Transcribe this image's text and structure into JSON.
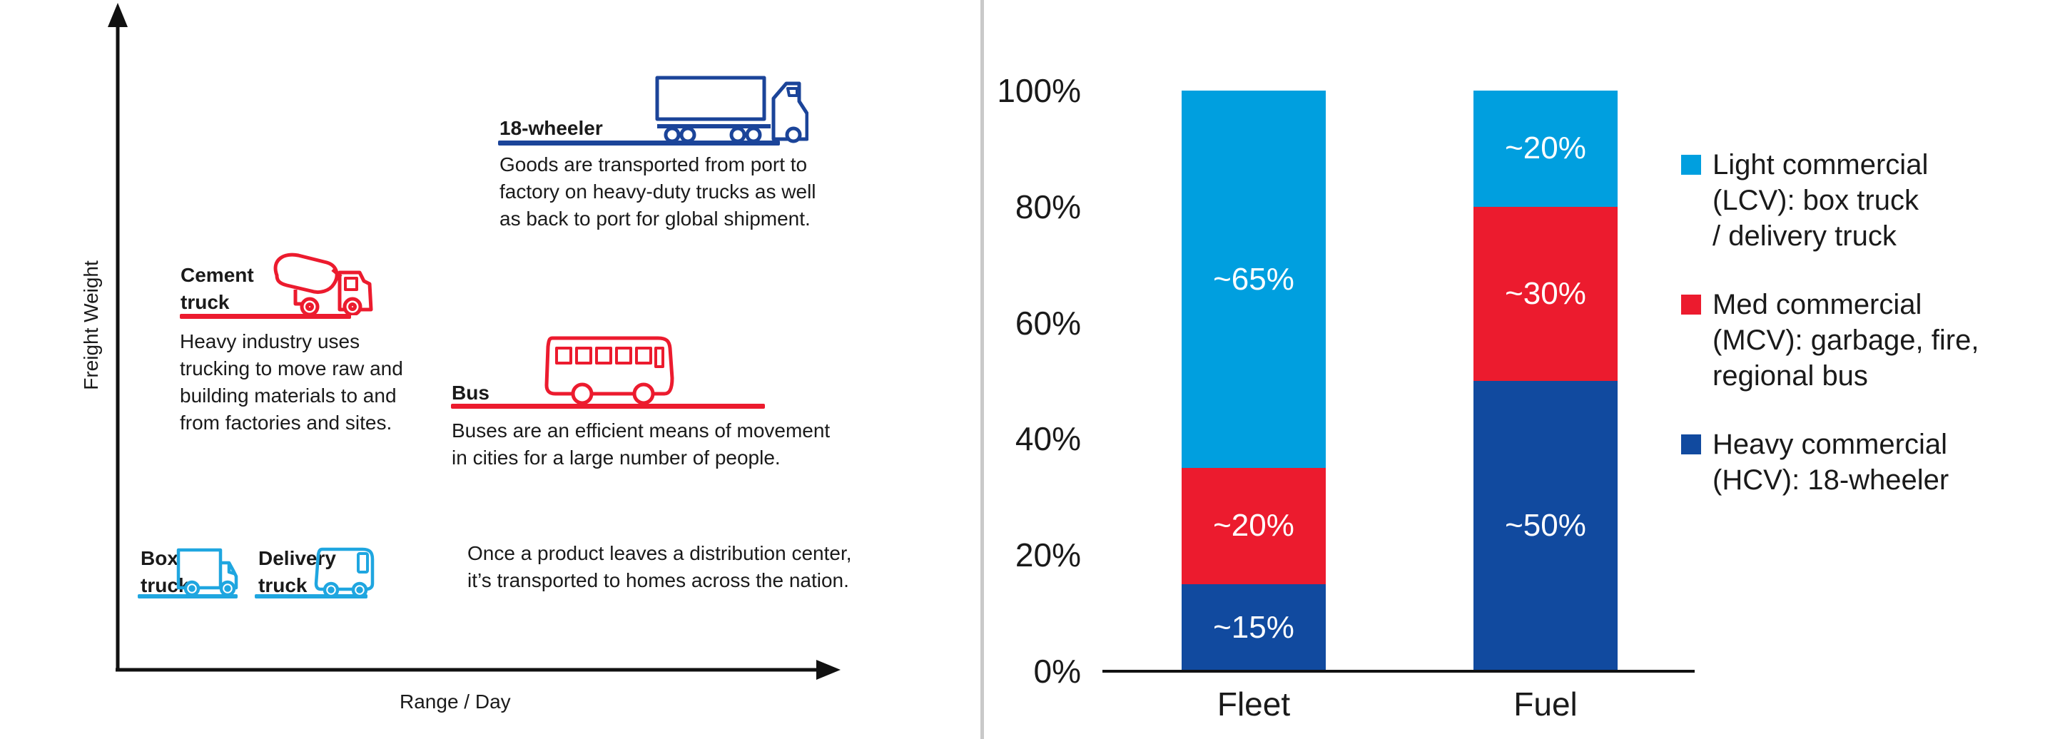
{
  "colors": {
    "lcv": "#009FDF",
    "mcv": "#EC1B2E",
    "hcv": "#114A9F",
    "navy": "#1B4499",
    "cyan": "#1FA6E0",
    "ink": "#1A1A1A",
    "axis": "#111111",
    "divider": "#C9C9C9"
  },
  "diagram": {
    "y_axis_label": "Freight Weight",
    "x_axis_label": "Range / Day",
    "groups": {
      "eighteen_wheeler": {
        "label": "18-wheeler",
        "description": "Goods are transported from port to\nfactory on heavy-duty trucks as well\nas back to port for global shipment."
      },
      "cement_truck": {
        "label": "Cement\ntruck",
        "description": "Heavy industry uses\ntrucking to move raw and\nbuilding materials to and\nfrom factories and sites."
      },
      "bus": {
        "label": "Bus",
        "description": "Buses are an efficient means of movement\nin cities for a large number of people."
      },
      "box_truck": {
        "label": "Box\ntruck"
      },
      "delivery_truck": {
        "label": "Delivery\ntruck"
      },
      "light_trucks_description": "Once a product leaves a distribution center,\nit’s transported to homes across the nation."
    }
  },
  "chart_data": {
    "type": "bar",
    "subtype": "stacked-100-percent",
    "categories": [
      "Fleet",
      "Fuel"
    ],
    "series": [
      {
        "name": "Light commercial (LCV): box truck / delivery truck",
        "color_key": "lcv",
        "values": [
          65,
          20
        ],
        "segment_labels": [
          "~65%",
          "~20%"
        ]
      },
      {
        "name": "Med commercial (MCV): garbage, fire, regional bus",
        "color_key": "mcv",
        "values": [
          20,
          30
        ],
        "segment_labels": [
          "~20%",
          "~30%"
        ]
      },
      {
        "name": "Heavy commercial (HCV): 18-wheeler",
        "color_key": "hcv",
        "values": [
          15,
          50
        ],
        "segment_labels": [
          "~15%",
          "~50%"
        ]
      }
    ],
    "stack_order": "top-to-bottom",
    "y_ticks": [
      "100%",
      "80%",
      "60%",
      "40%",
      "20%",
      "0%"
    ],
    "ylim": [
      0,
      100
    ],
    "grid": "off",
    "legend": {
      "position": "right",
      "items": [
        {
          "color_key": "lcv",
          "lines": "Light commercial\n(LCV): box truck\n/ delivery truck"
        },
        {
          "color_key": "mcv",
          "lines": "Med commercial\n(MCV): garbage, fire,\nregional bus"
        },
        {
          "color_key": "hcv",
          "lines": "Heavy commercial\n(HCV): 18-wheeler"
        }
      ]
    }
  }
}
